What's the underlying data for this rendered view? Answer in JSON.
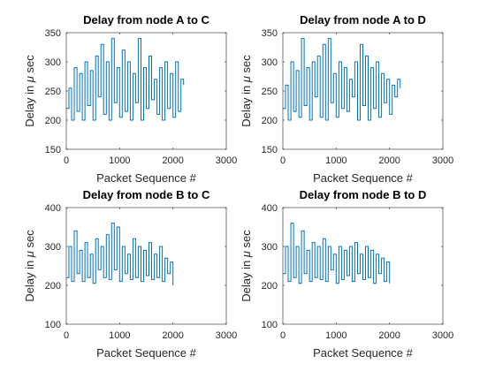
{
  "chart_data": [
    {
      "type": "line",
      "title": "Delay from node A to C",
      "xlabel": "Packet Sequence #",
      "ylabel_prefix": "Delay in ",
      "ylabel_symbol": "μ",
      "ylabel_suffix": " sec",
      "xlim": [
        0,
        3000
      ],
      "ylim": [
        150,
        350
      ],
      "xticks": [
        0,
        1000,
        2000,
        3000
      ],
      "yticks": [
        150,
        200,
        250,
        300,
        350
      ],
      "color": "#0072BD",
      "series": [
        {
          "x": [
            0,
            50,
            100,
            150,
            200,
            250,
            300,
            350,
            400,
            450,
            500,
            550,
            600,
            650,
            700,
            750,
            800,
            850,
            900,
            950,
            1000,
            1050,
            1100,
            1150,
            1200,
            1250,
            1300,
            1350,
            1400,
            1450,
            1500,
            1550,
            1600,
            1650,
            1700,
            1750,
            1800,
            1850,
            1900,
            1950,
            2000,
            2050,
            2100,
            2150,
            2200
          ],
          "y": [
            220,
            255,
            200,
            290,
            215,
            280,
            200,
            300,
            225,
            285,
            200,
            310,
            240,
            330,
            210,
            300,
            200,
            340,
            230,
            290,
            205,
            320,
            215,
            300,
            200,
            280,
            230,
            340,
            200,
            290,
            220,
            310,
            235,
            270,
            210,
            290,
            200,
            300,
            220,
            280,
            205,
            300,
            215,
            270,
            260
          ]
        }
      ]
    },
    {
      "type": "line",
      "title": "Delay from node A to D",
      "xlabel": "Packet Sequence #",
      "ylabel_prefix": "Delay in ",
      "ylabel_symbol": "μ",
      "ylabel_suffix": " sec",
      "xlim": [
        0,
        3000
      ],
      "ylim": [
        150,
        350
      ],
      "xticks": [
        0,
        1000,
        2000,
        3000
      ],
      "yticks": [
        150,
        200,
        250,
        300,
        350
      ],
      "color": "#0072BD",
      "series": [
        {
          "x": [
            0,
            50,
            100,
            150,
            200,
            250,
            300,
            350,
            400,
            450,
            500,
            550,
            600,
            650,
            700,
            750,
            800,
            850,
            900,
            950,
            1000,
            1050,
            1100,
            1150,
            1200,
            1250,
            1300,
            1350,
            1400,
            1450,
            1500,
            1550,
            1600,
            1650,
            1700,
            1750,
            1800,
            1850,
            1900,
            1950,
            2000,
            2050,
            2100,
            2150,
            2200
          ],
          "y": [
            220,
            260,
            200,
            300,
            215,
            285,
            205,
            340,
            225,
            290,
            200,
            300,
            240,
            310,
            205,
            330,
            200,
            340,
            230,
            280,
            205,
            300,
            220,
            290,
            215,
            270,
            240,
            300,
            200,
            330,
            225,
            310,
            200,
            290,
            220,
            300,
            205,
            280,
            230,
            270,
            210,
            260,
            240,
            270,
            255
          ]
        }
      ]
    },
    {
      "type": "line",
      "title": "Delay from node B to C",
      "xlabel": "Packet Sequence #",
      "ylabel_prefix": "Delay in ",
      "ylabel_symbol": "μ",
      "ylabel_suffix": " sec",
      "xlim": [
        0,
        3000
      ],
      "ylim": [
        100,
        400
      ],
      "xticks": [
        0,
        1000,
        2000,
        3000
      ],
      "yticks": [
        100,
        200,
        300,
        400
      ],
      "color": "#0072BD",
      "series": [
        {
          "x": [
            0,
            50,
            100,
            150,
            200,
            250,
            300,
            350,
            400,
            450,
            500,
            550,
            600,
            650,
            700,
            750,
            800,
            850,
            900,
            950,
            1000,
            1050,
            1100,
            1150,
            1200,
            1250,
            1300,
            1350,
            1400,
            1450,
            1500,
            1550,
            1600,
            1650,
            1700,
            1750,
            1800,
            1850,
            1900,
            1950,
            2000
          ],
          "y": [
            220,
            300,
            210,
            340,
            230,
            290,
            210,
            310,
            220,
            280,
            205,
            320,
            240,
            300,
            220,
            330,
            215,
            360,
            240,
            350,
            210,
            300,
            230,
            280,
            215,
            320,
            220,
            300,
            210,
            290,
            225,
            310,
            215,
            280,
            220,
            300,
            210,
            270,
            230,
            260,
            200
          ]
        }
      ]
    },
    {
      "type": "line",
      "title": "Delay from node B to D",
      "xlabel": "Packet Sequence #",
      "ylabel_prefix": "Delay in ",
      "ylabel_symbol": "μ",
      "ylabel_suffix": " sec",
      "xlim": [
        0,
        3000
      ],
      "ylim": [
        100,
        400
      ],
      "xticks": [
        0,
        1000,
        2000,
        3000
      ],
      "yticks": [
        100,
        200,
        300,
        400
      ],
      "color": "#0072BD",
      "series": [
        {
          "x": [
            0,
            50,
            100,
            150,
            200,
            250,
            300,
            350,
            400,
            450,
            500,
            550,
            600,
            650,
            700,
            750,
            800,
            850,
            900,
            950,
            1000,
            1050,
            1100,
            1150,
            1200,
            1250,
            1300,
            1350,
            1400,
            1450,
            1500,
            1550,
            1600,
            1650,
            1700,
            1750,
            1800,
            1850,
            1900,
            1950,
            2000
          ],
          "y": [
            230,
            300,
            210,
            360,
            220,
            300,
            205,
            340,
            230,
            290,
            210,
            310,
            220,
            300,
            215,
            320,
            210,
            300,
            240,
            280,
            205,
            300,
            215,
            290,
            225,
            300,
            210,
            310,
            230,
            280,
            215,
            300,
            220,
            290,
            205,
            280,
            230,
            270,
            210,
            260,
            205
          ]
        }
      ]
    }
  ]
}
